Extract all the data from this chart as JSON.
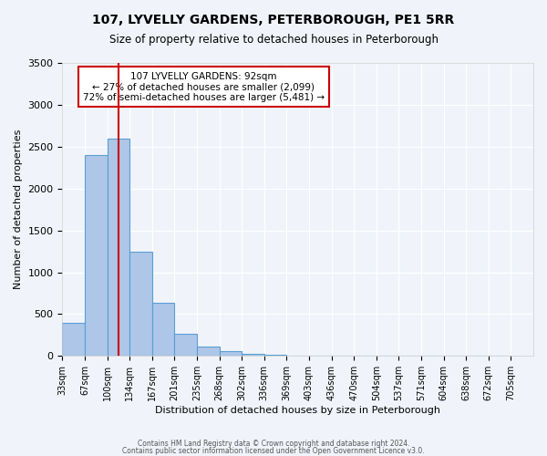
{
  "title": "107, LYVELLY GARDENS, PETERBOROUGH, PE1 5RR",
  "subtitle": "Size of property relative to detached houses in Peterborough",
  "xlabel": "Distribution of detached houses by size in Peterborough",
  "ylabel": "Number of detached properties",
  "bar_color": "#aec6e8",
  "bar_edge_color": "#5a9fd4",
  "background_color": "#f0f4fa",
  "grid_color": "#ffffff",
  "bin_labels": [
    "33sqm",
    "67sqm",
    "100sqm",
    "134sqm",
    "167sqm",
    "201sqm",
    "235sqm",
    "268sqm",
    "302sqm",
    "336sqm",
    "369sqm",
    "403sqm",
    "436sqm",
    "470sqm",
    "504sqm",
    "537sqm",
    "571sqm",
    "604sqm",
    "638sqm",
    "672sqm",
    "705sqm"
  ],
  "bar_values": [
    400,
    2400,
    2600,
    1250,
    640,
    260,
    110,
    60,
    30,
    20,
    5,
    0,
    0,
    0,
    0,
    0,
    0,
    0,
    0,
    0
  ],
  "ylim": [
    0,
    3500
  ],
  "yticks": [
    0,
    500,
    1000,
    1500,
    2000,
    2500,
    3000,
    3500
  ],
  "vline_color": "#cc0000",
  "vline_pos": 2.5,
  "annotation_text": "107 LYVELLY GARDENS: 92sqm\n← 27% of detached houses are smaller (2,099)\n72% of semi-detached houses are larger (5,481) →",
  "annotation_box_color": "#ffffff",
  "annotation_box_edge": "#cc0000",
  "footer_line1": "Contains HM Land Registry data © Crown copyright and database right 2024.",
  "footer_line2": "Contains public sector information licensed under the Open Government Licence v3.0."
}
